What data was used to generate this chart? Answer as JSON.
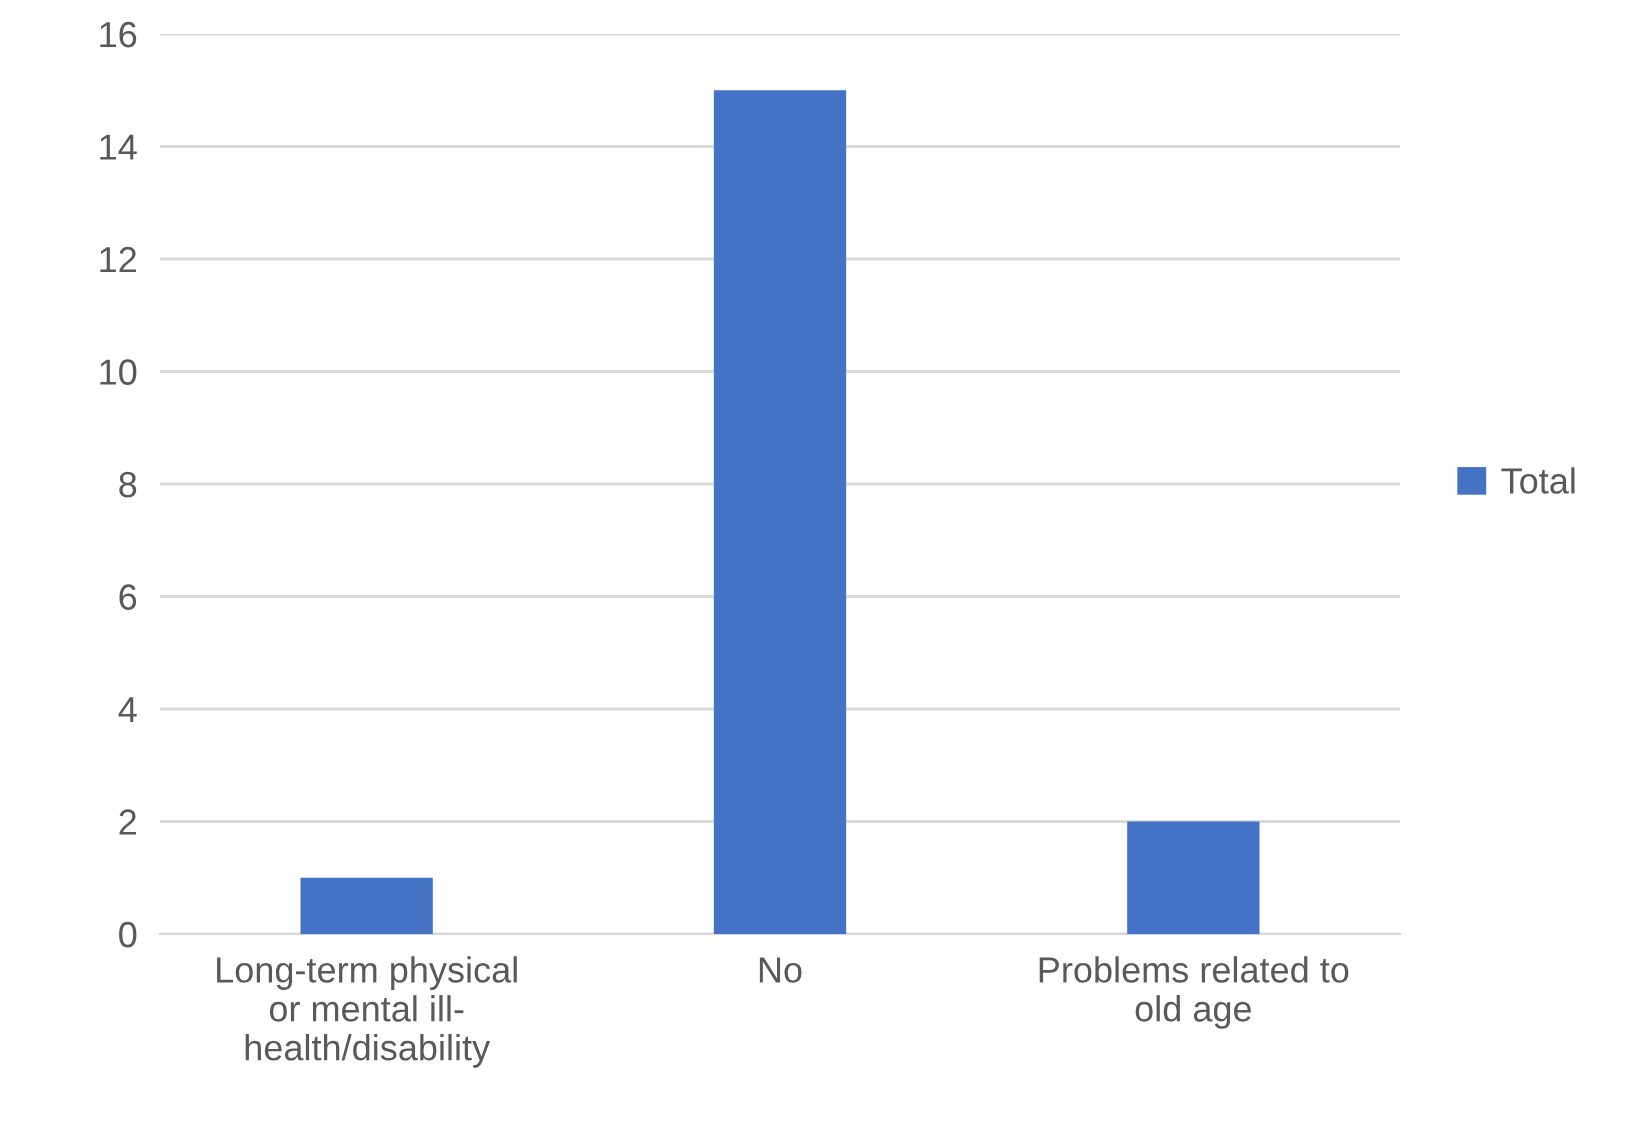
{
  "chart_data": {
    "type": "bar",
    "categories": [
      "Long-term physical\nor mental ill-\nhealth/disability",
      "No",
      "Problems related to\nold age"
    ],
    "series": [
      {
        "name": "Total",
        "color": "#4472c4",
        "values": [
          1,
          15,
          2
        ]
      }
    ],
    "ylim": [
      0,
      16
    ],
    "yticks": [
      0,
      2,
      4,
      6,
      8,
      10,
      12,
      14,
      16
    ],
    "grid": "y",
    "legend": "right"
  }
}
